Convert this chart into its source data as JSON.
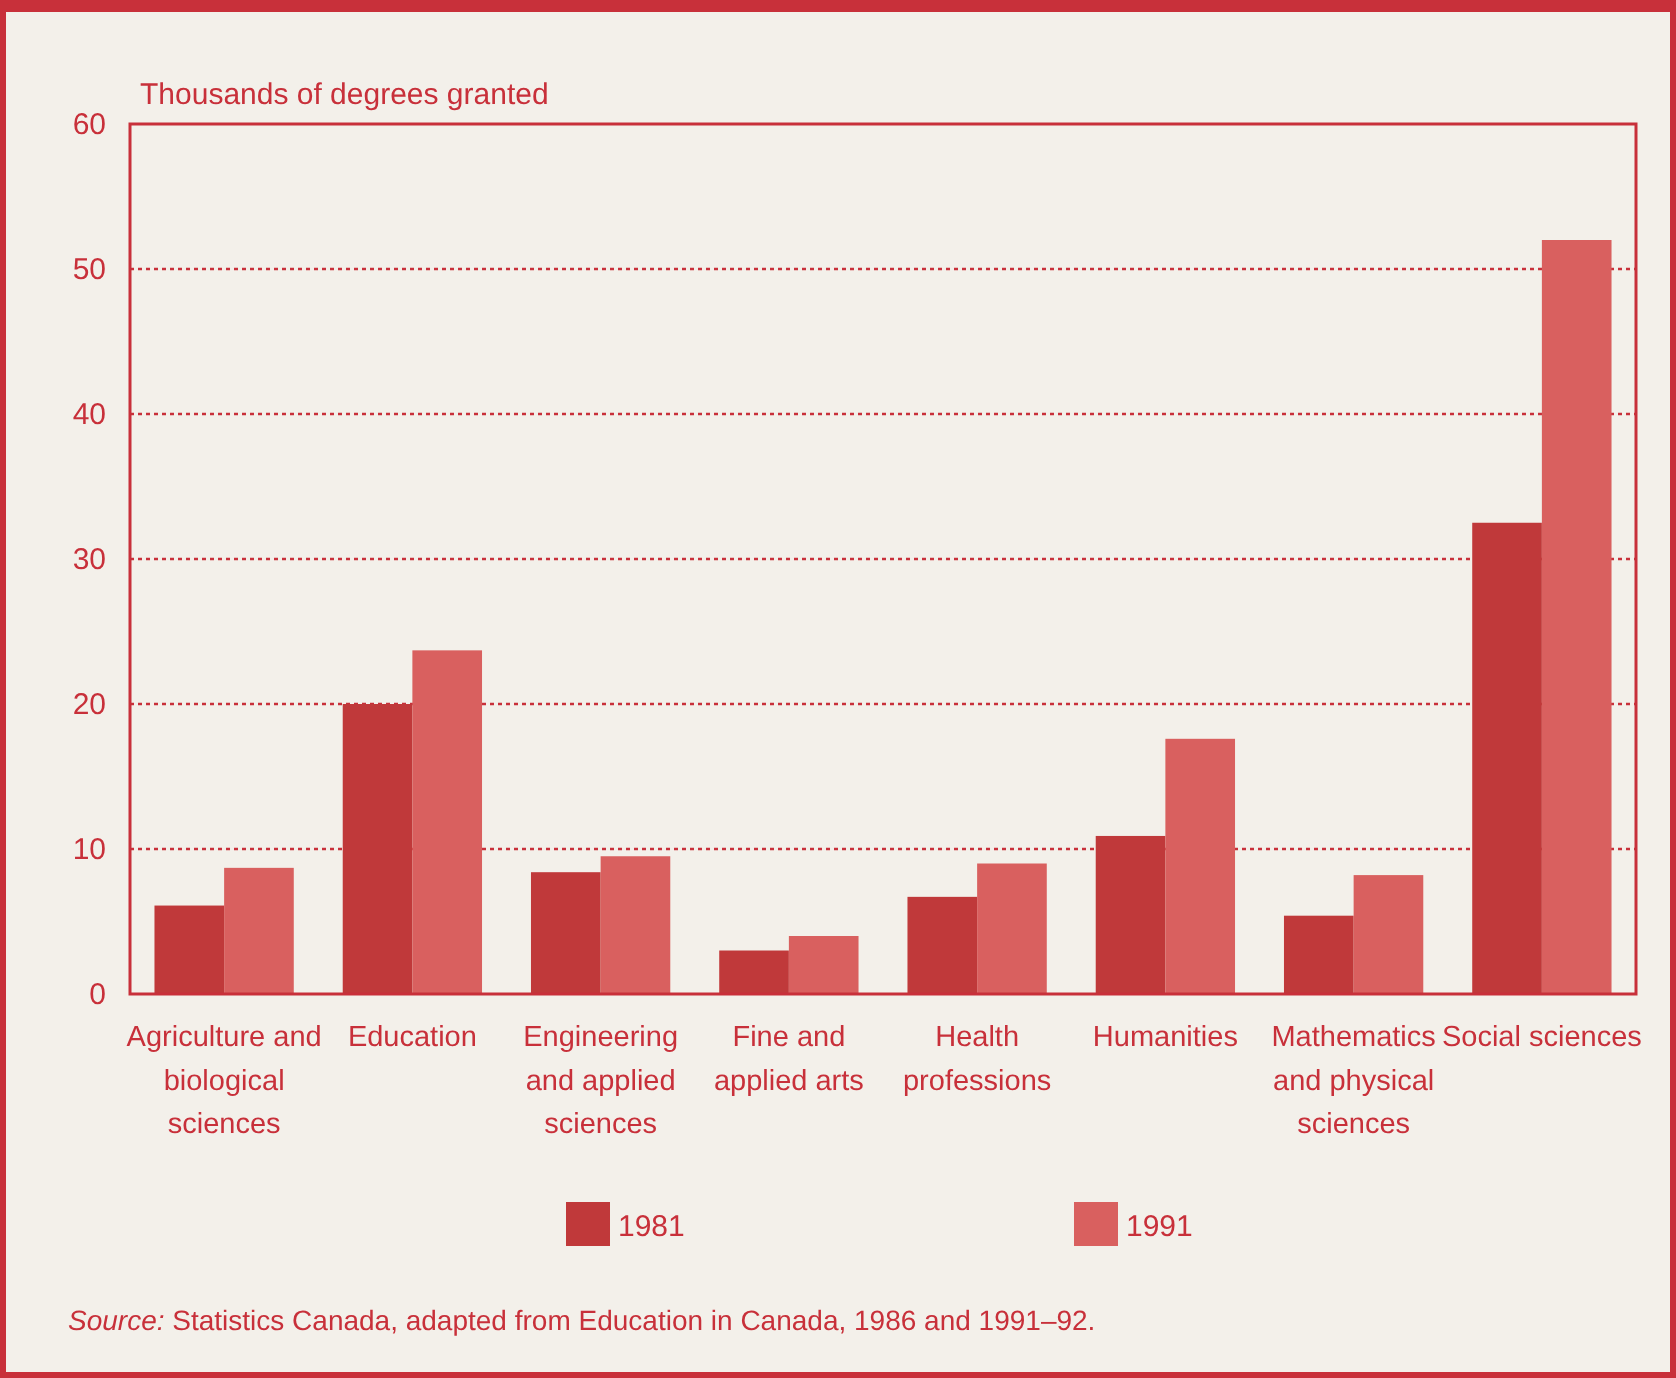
{
  "chart_data": {
    "type": "bar",
    "ylabel": "Thousands of degrees granted",
    "categories": [
      "Agriculture and biological sciences",
      "Education",
      "Engineering and applied sciences",
      "Fine and applied arts",
      "Health professions",
      "Humanities",
      "Mathematics and physical sciences",
      "Social sciences"
    ],
    "series": [
      {
        "name": "1981",
        "color": "#c0393a",
        "values": [
          6.1,
          20.0,
          8.4,
          3.0,
          6.7,
          10.9,
          5.4,
          32.5
        ]
      },
      {
        "name": "1991",
        "color": "#d9605f",
        "values": [
          8.7,
          23.7,
          9.5,
          4.0,
          9.0,
          17.6,
          8.2,
          52.0
        ]
      }
    ],
    "ylim": [
      0,
      60
    ],
    "yticks": [
      0,
      10,
      20,
      30,
      40,
      50,
      60
    ],
    "grid": "y",
    "legend": "bottom",
    "annotations": [
      "Source: Statistics Canada, adapted from Education in Canada, 1986 and 1991–92."
    ]
  }
}
